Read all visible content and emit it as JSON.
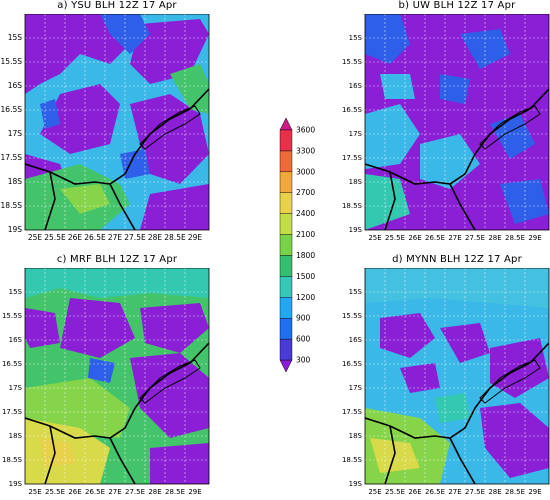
{
  "panels": [
    {
      "id": "a",
      "title": "a) YSU BLH 12Z 17 Apr",
      "scheme": "ysu"
    },
    {
      "id": "b",
      "title": "b) UW BLH 12Z 17 Apr",
      "scheme": "uw"
    },
    {
      "id": "c",
      "title": "c) MRF BLH 12Z 17 Apr",
      "scheme": "mrf"
    },
    {
      "id": "d",
      "title": "d) MYNN BLH 12Z 17 Apr",
      "scheme": "mynn"
    }
  ],
  "axes": {
    "lat_labels": [
      "15S",
      "15.5S",
      "16S",
      "16.5S",
      "17S",
      "17.5S",
      "18S",
      "18.5S",
      "19S"
    ],
    "lon_labels": [
      "25E",
      "25.5E",
      "26E",
      "26.5E",
      "27E",
      "27.5E",
      "28E",
      "28.5E",
      "29E"
    ]
  },
  "colorbar": {
    "levels": [
      300,
      600,
      900,
      1200,
      1500,
      1800,
      2100,
      2400,
      2700,
      3000,
      3300,
      3600
    ],
    "labels": [
      "300",
      "600",
      "900",
      "1200",
      "1500",
      "1800",
      "2100",
      "2400",
      "2700",
      "3000",
      "3300",
      "3600"
    ],
    "colors": [
      "#8a1fd6",
      "#4a3ad8",
      "#1f6ff0",
      "#22a8f0",
      "#33c8b8",
      "#33c070",
      "#7ad24a",
      "#c3de45",
      "#e8d24a",
      "#f0a83a",
      "#ee6a3a",
      "#e8304a",
      "#d01a8a"
    ]
  },
  "colors": {
    "purple": "#8a1fd6",
    "blue": "#2d5fe8",
    "cyan": "#3ab8e8",
    "teal": "#33c8b0",
    "green": "#44c46a",
    "lightgreen": "#86d44a",
    "yellow": "#d8da4a"
  }
}
